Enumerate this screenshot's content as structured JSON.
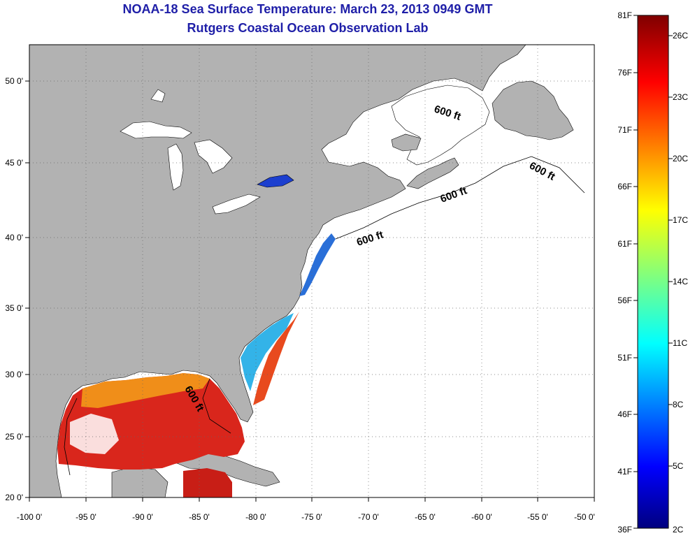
{
  "title": "NOAA-18 Sea Surface Temperature:  March 23, 2013 0949 GMT",
  "subtitle": "Rutgers Coastal Ocean Observation Lab",
  "colors": {
    "land": "#b2b2b2",
    "water_nodata": "#ffffff",
    "title_text": "#1f1fa8",
    "colorbar_top": "#7f0000",
    "colorbar_bottom": "#00007f"
  },
  "map": {
    "lon_ticks": [
      "-100 0'",
      "-95 0'",
      "-90 0'",
      "-85 0'",
      "-80 0'",
      "-75 0'",
      "-70 0'",
      "-65 0'",
      "-60 0'",
      "-55 0'",
      "-50 0'"
    ],
    "lat_ticks": [
      "50 0'",
      "45 0'",
      "40 0'",
      "35 0'",
      "30 0'",
      "25 0'",
      "20 0'"
    ],
    "contour_labels": [
      "600 ft",
      "600 ft",
      "600 ft",
      "600 ft",
      "600 ft"
    ]
  },
  "colorbar": {
    "f_labels": [
      "81F",
      "76F",
      "71F",
      "66F",
      "61F",
      "56F",
      "51F",
      "46F",
      "41F",
      "36F"
    ],
    "c_labels": [
      "26C",
      "23C",
      "20C",
      "17C",
      "14C",
      "11C",
      "8C",
      "5C",
      "2C"
    ]
  }
}
